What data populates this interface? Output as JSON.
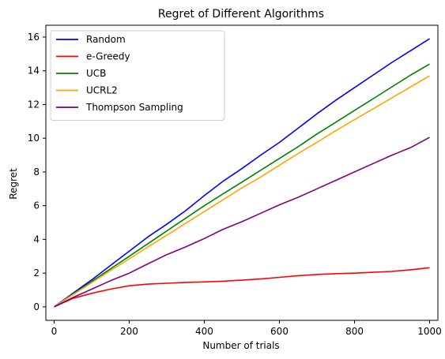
{
  "chart_data": {
    "type": "line",
    "title": "Regret of Different Algorithms",
    "xlabel": "Number of trials",
    "ylabel": "Regret",
    "xlim": [
      -22,
      1022
    ],
    "ylim": [
      -0.8,
      16.7
    ],
    "xticks": [
      0,
      200,
      400,
      600,
      800,
      1000
    ],
    "yticks": [
      0,
      2,
      4,
      6,
      8,
      10,
      12,
      14,
      16
    ],
    "grid": false,
    "legend_position": "top-left",
    "series": [
      {
        "name": "Random",
        "color": "#0000ff",
        "x": [
          0,
          50,
          100,
          150,
          200,
          250,
          300,
          350,
          400,
          450,
          500,
          550,
          600,
          650,
          700,
          750,
          800,
          850,
          900,
          950,
          1000
        ],
        "y": [
          0,
          0.8,
          1.6,
          2.45,
          3.3,
          4.15,
          4.9,
          5.7,
          6.6,
          7.45,
          8.2,
          9.0,
          9.75,
          10.6,
          11.45,
          12.25,
          13.0,
          13.75,
          14.5,
          15.2,
          15.9
        ]
      },
      {
        "name": "e-Greedy",
        "color": "#ff0000",
        "x": [
          0,
          50,
          100,
          150,
          200,
          250,
          300,
          350,
          400,
          450,
          500,
          550,
          600,
          650,
          700,
          750,
          800,
          850,
          900,
          950,
          1000
        ],
        "y": [
          0,
          0.5,
          0.8,
          1.05,
          1.25,
          1.35,
          1.4,
          1.45,
          1.48,
          1.52,
          1.58,
          1.65,
          1.75,
          1.85,
          1.92,
          1.97,
          2.0,
          2.05,
          2.1,
          2.2,
          2.32
        ]
      },
      {
        "name": "UCB",
        "color": "#008000",
        "x": [
          0,
          50,
          100,
          150,
          200,
          250,
          300,
          350,
          400,
          450,
          500,
          550,
          600,
          650,
          700,
          750,
          800,
          850,
          900,
          950,
          1000
        ],
        "y": [
          0,
          0.75,
          1.5,
          2.25,
          3.0,
          3.75,
          4.5,
          5.25,
          6.0,
          6.7,
          7.4,
          8.1,
          8.8,
          9.5,
          10.25,
          10.95,
          11.65,
          12.35,
          13.05,
          13.75,
          14.4
        ]
      },
      {
        "name": "UCRL2",
        "color": "#ffa500",
        "x": [
          0,
          50,
          100,
          150,
          200,
          250,
          300,
          350,
          400,
          450,
          500,
          550,
          600,
          650,
          700,
          750,
          800,
          850,
          900,
          950,
          1000
        ],
        "y": [
          0,
          0.72,
          1.43,
          2.15,
          2.85,
          3.55,
          4.25,
          4.95,
          5.65,
          6.35,
          7.05,
          7.7,
          8.4,
          9.1,
          9.75,
          10.45,
          11.1,
          11.75,
          12.4,
          13.05,
          13.7
        ]
      },
      {
        "name": "Thompson Sampling",
        "color": "#800080",
        "x": [
          0,
          50,
          100,
          150,
          200,
          250,
          300,
          350,
          400,
          450,
          500,
          550,
          600,
          650,
          700,
          750,
          800,
          850,
          900,
          950,
          1000
        ],
        "y": [
          0,
          0.55,
          1.05,
          1.55,
          2.0,
          2.55,
          3.1,
          3.55,
          4.05,
          4.6,
          5.05,
          5.55,
          6.05,
          6.5,
          7.0,
          7.5,
          8.0,
          8.5,
          9.0,
          9.45,
          10.05
        ]
      }
    ]
  }
}
